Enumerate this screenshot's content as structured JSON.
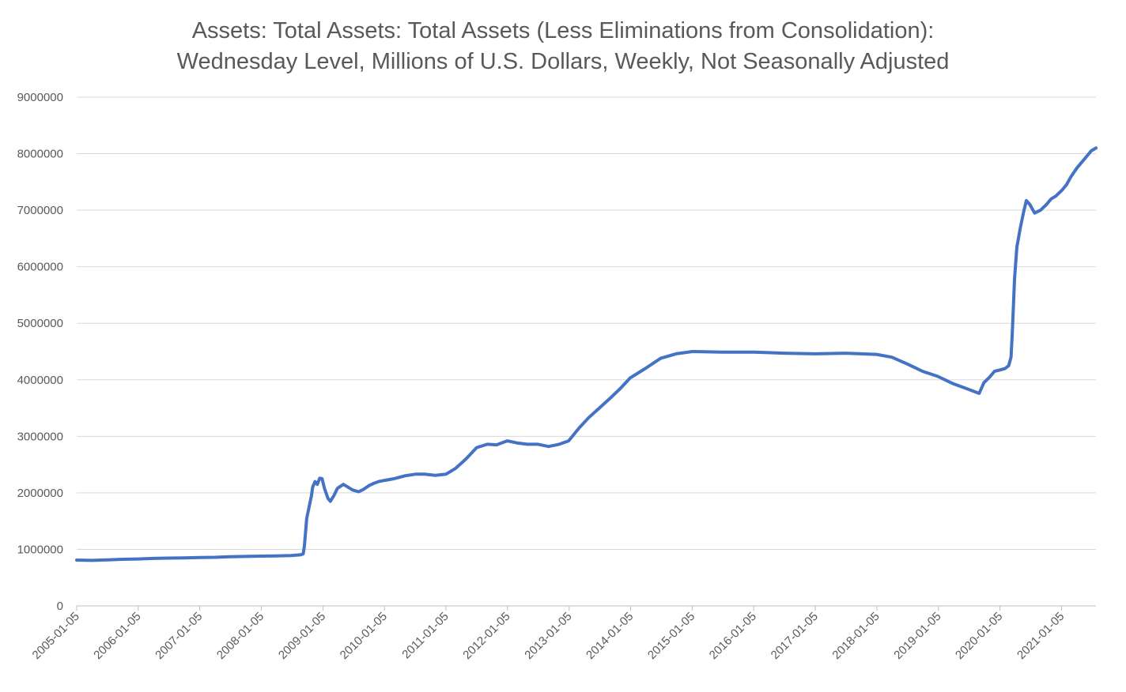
{
  "chart_data": {
    "type": "line",
    "title_lines": [
      "Assets: Total Assets: Total Assets (Less Eliminations from Consolidation):",
      "Wednesday Level, Millions of U.S. Dollars, Weekly, Not Seasonally Adjusted"
    ],
    "xlabel": "",
    "ylabel": "",
    "ylim": [
      0,
      9000000
    ],
    "y_ticks": [
      0,
      1000000,
      2000000,
      3000000,
      4000000,
      5000000,
      6000000,
      7000000,
      8000000,
      9000000
    ],
    "y_tick_labels": [
      "0",
      "1000000",
      "2000000",
      "3000000",
      "4000000",
      "5000000",
      "6000000",
      "7000000",
      "8000000",
      "9000000"
    ],
    "x_range": [
      "2005-01-05",
      "2021-07-28"
    ],
    "x_tick_labels": [
      "2005-01-05",
      "2006-01-05",
      "2007-01-05",
      "2008-01-05",
      "2009-01-05",
      "2010-01-05",
      "2011-01-05",
      "2012-01-05",
      "2013-01-05",
      "2014-01-05",
      "2015-01-05",
      "2016-01-05",
      "2017-01-05",
      "2018-01-05",
      "2019-01-05",
      "2020-01-05",
      "2021-01-05"
    ],
    "grid": "horizontal",
    "legend": "none",
    "series_color": "#4472c4",
    "series": [
      {
        "points": [
          [
            "2005-01-05",
            810000
          ],
          [
            "2005-04-06",
            805000
          ],
          [
            "2005-07-06",
            815000
          ],
          [
            "2005-10-05",
            825000
          ],
          [
            "2006-01-04",
            830000
          ],
          [
            "2006-04-05",
            840000
          ],
          [
            "2006-07-05",
            845000
          ],
          [
            "2006-10-04",
            850000
          ],
          [
            "2007-01-03",
            855000
          ],
          [
            "2007-04-04",
            860000
          ],
          [
            "2007-07-04",
            870000
          ],
          [
            "2007-10-03",
            875000
          ],
          [
            "2008-01-02",
            880000
          ],
          [
            "2008-04-02",
            885000
          ],
          [
            "2008-07-02",
            890000
          ],
          [
            "2008-08-27",
            905000
          ],
          [
            "2008-09-10",
            920000
          ],
          [
            "2008-09-17",
            1050000
          ],
          [
            "2008-09-24",
            1300000
          ],
          [
            "2008-10-01",
            1550000
          ],
          [
            "2008-10-15",
            1750000
          ],
          [
            "2008-10-29",
            1950000
          ],
          [
            "2008-11-05",
            2100000
          ],
          [
            "2008-11-19",
            2200000
          ],
          [
            "2008-12-03",
            2150000
          ],
          [
            "2008-12-17",
            2260000
          ],
          [
            "2008-12-31",
            2250000
          ],
          [
            "2009-01-14",
            2080000
          ],
          [
            "2009-02-04",
            1900000
          ],
          [
            "2009-02-18",
            1850000
          ],
          [
            "2009-03-11",
            1950000
          ],
          [
            "2009-04-01",
            2080000
          ],
          [
            "2009-05-06",
            2150000
          ],
          [
            "2009-06-03",
            2100000
          ],
          [
            "2009-07-01",
            2050000
          ],
          [
            "2009-08-05",
            2020000
          ],
          [
            "2009-09-02",
            2060000
          ],
          [
            "2009-10-07",
            2130000
          ],
          [
            "2009-11-04",
            2170000
          ],
          [
            "2009-12-02",
            2200000
          ],
          [
            "2010-01-06",
            2220000
          ],
          [
            "2010-03-03",
            2250000
          ],
          [
            "2010-05-05",
            2300000
          ],
          [
            "2010-07-07",
            2330000
          ],
          [
            "2010-09-01",
            2330000
          ],
          [
            "2010-11-03",
            2310000
          ],
          [
            "2011-01-05",
            2330000
          ],
          [
            "2011-03-02",
            2430000
          ],
          [
            "2011-05-04",
            2600000
          ],
          [
            "2011-07-06",
            2800000
          ],
          [
            "2011-09-07",
            2860000
          ],
          [
            "2011-11-02",
            2850000
          ],
          [
            "2012-01-04",
            2920000
          ],
          [
            "2012-03-07",
            2880000
          ],
          [
            "2012-05-02",
            2860000
          ],
          [
            "2012-07-04",
            2860000
          ],
          [
            "2012-09-05",
            2820000
          ],
          [
            "2012-11-07",
            2860000
          ],
          [
            "2013-01-02",
            2920000
          ],
          [
            "2013-03-06",
            3150000
          ],
          [
            "2013-05-01",
            3330000
          ],
          [
            "2013-07-03",
            3500000
          ],
          [
            "2013-09-04",
            3670000
          ],
          [
            "2013-11-06",
            3850000
          ],
          [
            "2014-01-01",
            4030000
          ],
          [
            "2014-04-02",
            4200000
          ],
          [
            "2014-07-02",
            4380000
          ],
          [
            "2014-10-01",
            4460000
          ],
          [
            "2015-01-07",
            4500000
          ],
          [
            "2015-07-01",
            4490000
          ],
          [
            "2016-01-06",
            4490000
          ],
          [
            "2016-07-06",
            4470000
          ],
          [
            "2017-01-04",
            4460000
          ],
          [
            "2017-07-05",
            4470000
          ],
          [
            "2018-01-03",
            4450000
          ],
          [
            "2018-04-04",
            4400000
          ],
          [
            "2018-07-04",
            4280000
          ],
          [
            "2018-10-03",
            4150000
          ],
          [
            "2019-01-02",
            4060000
          ],
          [
            "2019-04-03",
            3930000
          ],
          [
            "2019-07-03",
            3830000
          ],
          [
            "2019-09-04",
            3760000
          ],
          [
            "2019-10-02",
            3950000
          ],
          [
            "2019-11-06",
            4050000
          ],
          [
            "2019-12-04",
            4150000
          ],
          [
            "2020-01-01",
            4170000
          ],
          [
            "2020-02-05",
            4200000
          ],
          [
            "2020-02-26",
            4250000
          ],
          [
            "2020-03-11",
            4400000
          ],
          [
            "2020-03-18",
            4800000
          ],
          [
            "2020-03-25",
            5300000
          ],
          [
            "2020-04-01",
            5800000
          ],
          [
            "2020-04-15",
            6350000
          ],
          [
            "2020-05-06",
            6700000
          ],
          [
            "2020-05-27",
            7000000
          ],
          [
            "2020-06-10",
            7170000
          ],
          [
            "2020-07-01",
            7100000
          ],
          [
            "2020-07-29",
            6950000
          ],
          [
            "2020-09-02",
            7000000
          ],
          [
            "2020-10-07",
            7100000
          ],
          [
            "2020-11-04",
            7200000
          ],
          [
            "2020-12-02",
            7250000
          ],
          [
            "2021-01-06",
            7350000
          ],
          [
            "2021-02-03",
            7450000
          ],
          [
            "2021-03-03",
            7600000
          ],
          [
            "2021-04-07",
            7750000
          ],
          [
            "2021-05-05",
            7850000
          ],
          [
            "2021-06-02",
            7950000
          ],
          [
            "2021-06-30",
            8050000
          ],
          [
            "2021-07-28",
            8100000
          ]
        ]
      }
    ]
  }
}
